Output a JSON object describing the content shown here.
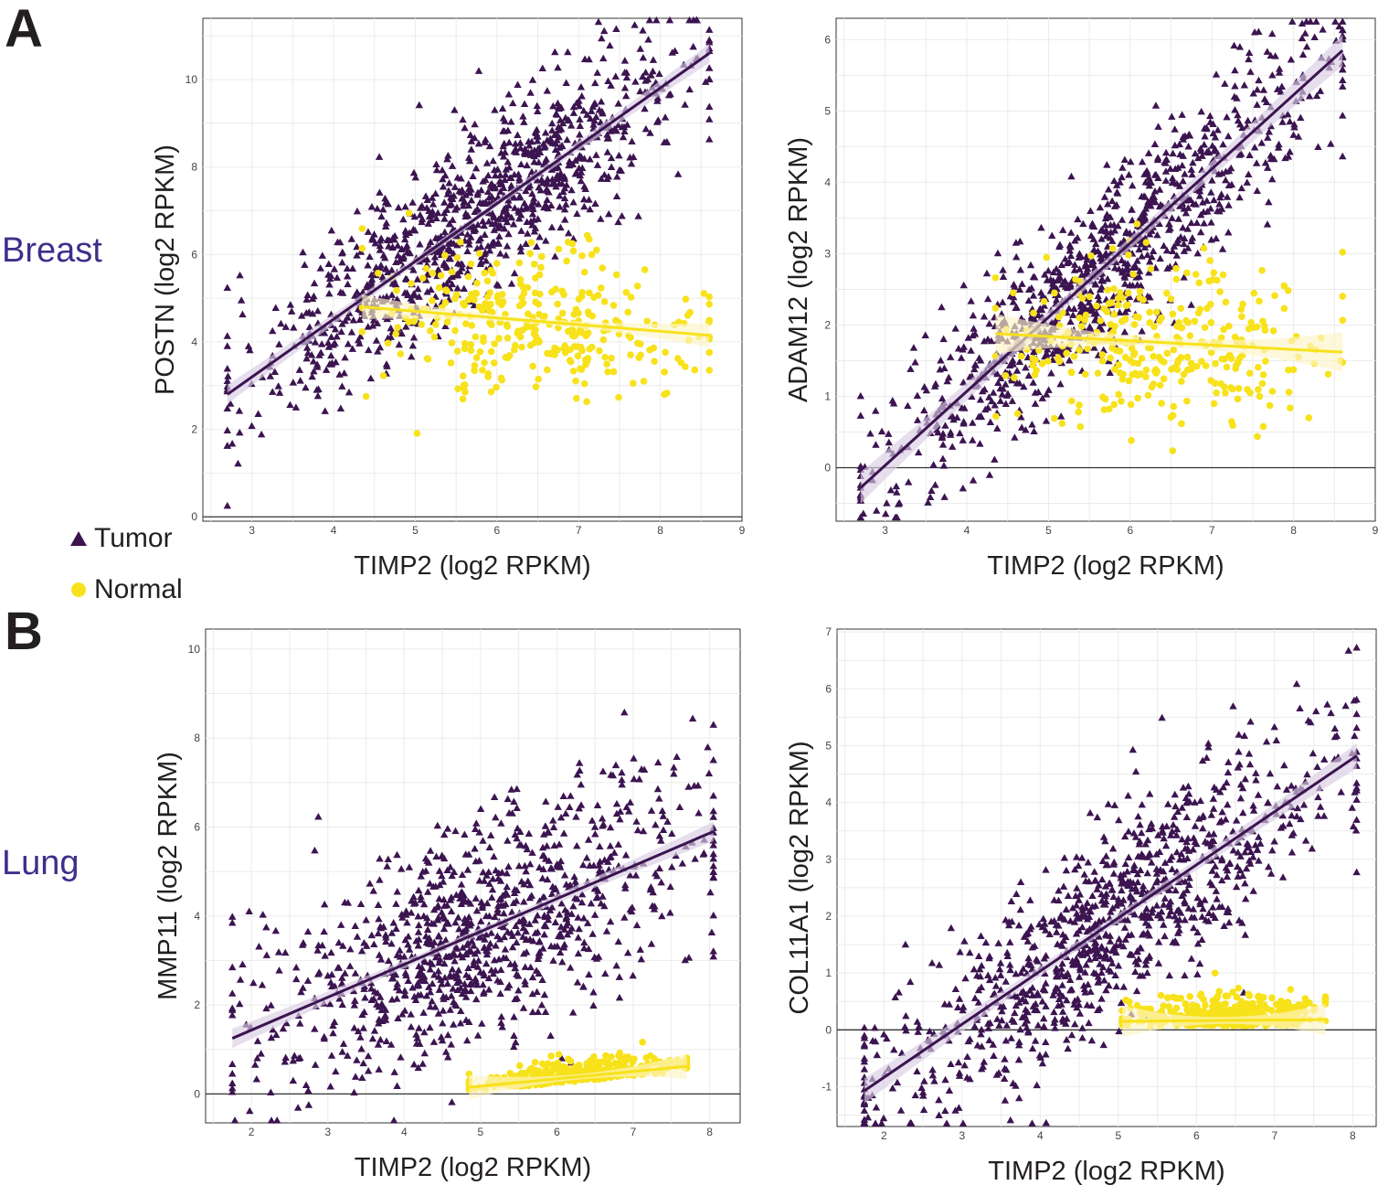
{
  "panels": {
    "a": "A",
    "b": "B"
  },
  "row_labels": {
    "breast": "Breast",
    "lung": "Lung"
  },
  "legend": {
    "tumor": "Tumor",
    "normal": "Normal"
  },
  "colors": {
    "tumor": "#3b1450",
    "normal": "#f7e21b",
    "band_tumor": "#d9cde3",
    "band_normal": "#fdf5c8",
    "grid": "#ebebeb",
    "axis": "#333333"
  },
  "chart_data": [
    {
      "id": "breast-postn",
      "type": "scatter",
      "title": "",
      "xlabel": "TIMP2 (log2 RPKM)",
      "ylabel": "POSTN (log2 RPKM)",
      "xlim": [
        2.4,
        9.0
      ],
      "ylim": [
        -0.1,
        11.4
      ],
      "xticks": [
        3,
        4,
        5,
        6,
        7,
        8,
        9
      ],
      "yticks": [
        0,
        2,
        4,
        6,
        8,
        10
      ],
      "series": [
        {
          "name": "Tumor",
          "marker": "triangle",
          "n": 1050,
          "x_range": [
            2.7,
            8.6
          ],
          "fit": {
            "x": [
              2.7,
              8.6
            ],
            "y": [
              2.8,
              10.6
            ]
          },
          "spread": 0.95
        },
        {
          "name": "Normal",
          "marker": "circle",
          "n": 320,
          "x_range": [
            4.35,
            8.6
          ],
          "fit": {
            "x": [
              4.35,
              8.6
            ],
            "y": [
              4.8,
              4.15
            ]
          },
          "spread": 0.8
        }
      ]
    },
    {
      "id": "breast-adam12",
      "type": "scatter",
      "title": "",
      "xlabel": "TIMP2 (log2 RPKM)",
      "ylabel": "ADAM12 (log2 RPKM)",
      "xlim": [
        2.4,
        9.0
      ],
      "ylim": [
        -0.75,
        6.3
      ],
      "xticks": [
        3,
        4,
        5,
        6,
        7,
        8,
        9
      ],
      "yticks": [
        0,
        1,
        2,
        3,
        4,
        5,
        6
      ],
      "series": [
        {
          "name": "Tumor",
          "marker": "triangle",
          "n": 1050,
          "x_range": [
            2.7,
            8.6
          ],
          "fit": {
            "x": [
              2.7,
              8.6
            ],
            "y": [
              -0.28,
              5.85
            ]
          },
          "spread": 0.6
        },
        {
          "name": "Normal",
          "marker": "circle",
          "n": 320,
          "x_range": [
            4.35,
            8.6
          ],
          "fit": {
            "x": [
              4.35,
              8.6
            ],
            "y": [
              1.88,
              1.62
            ]
          },
          "spread": 0.55
        }
      ]
    },
    {
      "id": "lung-mmp11",
      "type": "scatter",
      "title": "",
      "xlabel": "TIMP2 (log2 RPKM)",
      "ylabel": "MMP11 (log2 RPKM)",
      "xlim": [
        1.4,
        8.4
      ],
      "ylim": [
        -0.65,
        10.45
      ],
      "xticks": [
        2,
        3,
        4,
        5,
        6,
        7,
        8
      ],
      "yticks": [
        0,
        2,
        4,
        6,
        8,
        10
      ],
      "series": [
        {
          "name": "Tumor",
          "marker": "triangle",
          "n": 1000,
          "x_range": [
            1.75,
            8.05
          ],
          "fit": {
            "x": [
              1.75,
              8.05
            ],
            "y": [
              1.25,
              5.9
            ]
          },
          "spread": 1.25
        },
        {
          "name": "Normal",
          "marker": "circle",
          "n": 380,
          "x_range": [
            4.85,
            7.7
          ],
          "fit": {
            "x": [
              4.85,
              7.7
            ],
            "y": [
              0.15,
              0.62
            ]
          },
          "spread": 0.22
        }
      ]
    },
    {
      "id": "lung-col11a1",
      "type": "scatter",
      "title": "",
      "xlabel": "TIMP2 (log2 RPKM)",
      "ylabel": "COL11A1 (log2 RPKM)",
      "xlim": [
        1.4,
        8.3
      ],
      "ylim": [
        -1.7,
        7.05
      ],
      "xticks": [
        2,
        3,
        4,
        5,
        6,
        7,
        8
      ],
      "yticks": [
        -1,
        0,
        1,
        2,
        3,
        4,
        5,
        6,
        7
      ],
      "series": [
        {
          "name": "Tumor",
          "marker": "triangle",
          "n": 1000,
          "x_range": [
            1.75,
            8.05
          ],
          "fit": {
            "x": [
              1.75,
              8.05
            ],
            "y": [
              -1.07,
              4.82
            ]
          },
          "spread": 0.85
        },
        {
          "name": "Normal",
          "marker": "circle",
          "n": 380,
          "x_range": [
            5.05,
            7.65
          ],
          "fit": {
            "x": [
              5.05,
              7.65
            ],
            "y": [
              0.15,
              0.18
            ]
          },
          "spread": 0.25
        }
      ]
    }
  ]
}
